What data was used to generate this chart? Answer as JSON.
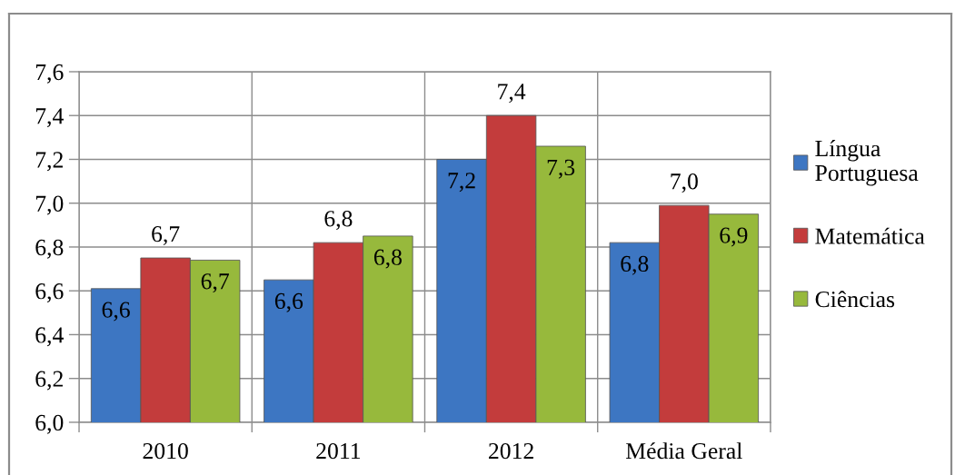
{
  "chart_data": {
    "type": "bar",
    "categories": [
      "2010",
      "2011",
      "2012",
      "Média Geral"
    ],
    "series": [
      {
        "name": "Língua Portuguesa",
        "color": "#3d76c2",
        "values": [
          6.61,
          6.65,
          7.2,
          6.82
        ],
        "value_labels": [
          "6,6",
          "6,6",
          "7,2",
          "6,8"
        ]
      },
      {
        "name": "Matemática",
        "color": "#c33c3c",
        "values": [
          6.75,
          6.82,
          7.4,
          6.99
        ],
        "value_labels": [
          "6,7",
          "6,8",
          "7,4",
          "7,0"
        ]
      },
      {
        "name": "Ciências",
        "color": "#97b93c",
        "values": [
          6.74,
          6.85,
          7.26,
          6.95
        ],
        "value_labels": [
          "6,7",
          "6,8",
          "7,3",
          "6,9"
        ]
      }
    ],
    "ylim": [
      6.0,
      7.6
    ],
    "yticks": [
      {
        "value": 6.0,
        "label": "6,0"
      },
      {
        "value": 6.2,
        "label": "6,2"
      },
      {
        "value": 6.4,
        "label": "6,4"
      },
      {
        "value": 6.6,
        "label": "6,6"
      },
      {
        "value": 6.8,
        "label": "6,8"
      },
      {
        "value": 7.0,
        "label": "7,0"
      },
      {
        "value": 7.2,
        "label": "7,2"
      },
      {
        "value": 7.4,
        "label": "7,4"
      },
      {
        "value": 7.6,
        "label": "7,6"
      }
    ],
    "grid": true,
    "legend": "right"
  }
}
